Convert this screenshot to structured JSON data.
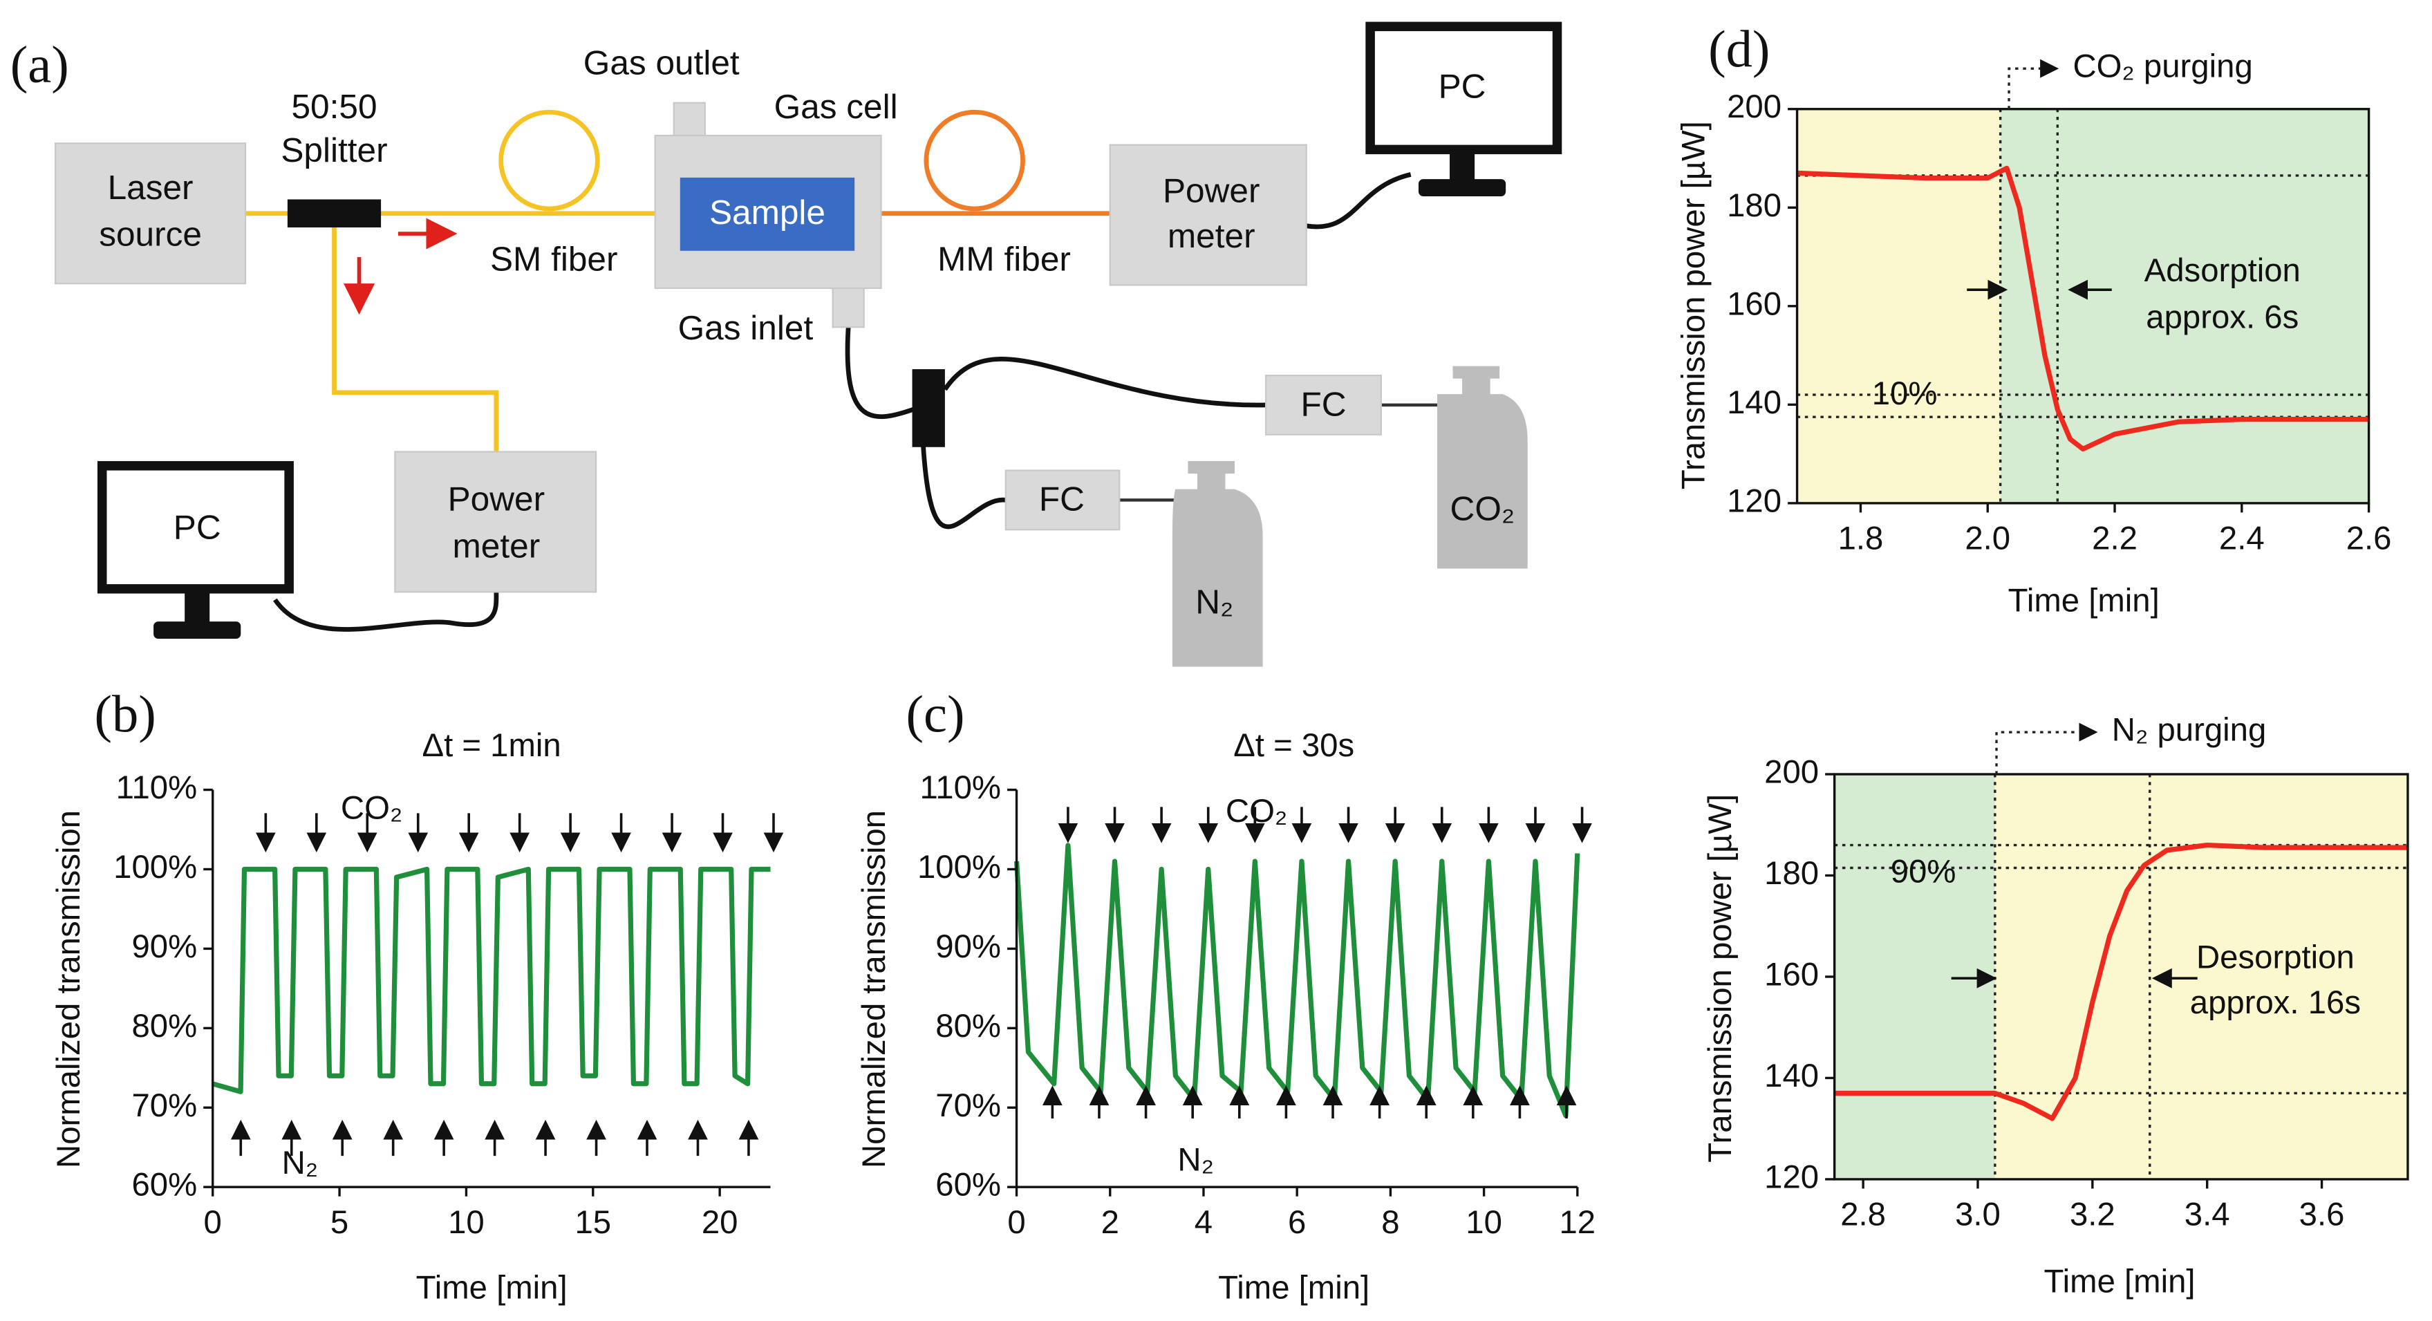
{
  "panel_labels": [
    "(a)",
    "(b)",
    "(c)",
    "(d)"
  ],
  "diagram": {
    "laser_source": [
      "Laser",
      "source"
    ],
    "splitter": [
      "50:50",
      "Splitter"
    ],
    "sm_fiber": "SM fiber",
    "gas_outlet": "Gas outlet",
    "gas_cell": "Gas cell",
    "sample": "Sample",
    "mm_fiber": "MM fiber",
    "power_meter_1": [
      "Power",
      "meter"
    ],
    "pc_1": "PC",
    "gas_inlet": "Gas inlet",
    "fc_1": "FC",
    "fc_2": "FC",
    "co2": "CO₂",
    "n2": "N₂",
    "power_meter_2": [
      "Power",
      "meter"
    ],
    "pc_2": "PC"
  },
  "chart_data": [
    {
      "type": "line",
      "title": "Δt = 1min",
      "xlabel": "Time [min]",
      "ylabel": "Normalized transmission",
      "x": [
        0,
        1.1,
        1.25,
        2.45,
        2.6,
        3.1,
        3.25,
        4.45,
        4.6,
        5.1,
        5.25,
        6.45,
        6.6,
        7.1,
        7.25,
        8.45,
        8.6,
        9.1,
        9.25,
        10.45,
        10.6,
        11.1,
        11.25,
        12.45,
        12.6,
        13.1,
        13.25,
        14.45,
        14.6,
        15.1,
        15.25,
        16.45,
        16.6,
        17.1,
        17.25,
        18.45,
        18.6,
        19.1,
        19.25,
        20.45,
        20.6,
        21.1,
        21.25,
        22
      ],
      "series": [
        {
          "color": "#1f8f3c",
          "values": [
            73,
            72,
            100,
            100,
            74,
            74,
            100,
            100,
            74,
            74,
            100,
            100,
            74,
            74,
            99,
            100,
            73,
            73,
            100,
            100,
            73,
            73,
            99,
            100,
            73,
            73,
            100,
            100,
            74,
            74,
            100,
            100,
            73,
            73,
            100,
            100,
            73,
            73,
            100,
            100,
            74,
            73,
            100,
            100
          ]
        }
      ],
      "xlim": [
        0,
        22
      ],
      "xticks": [
        0,
        5,
        10,
        15,
        20
      ],
      "ylim": [
        60,
        110
      ],
      "yticks": [
        {
          "value": 60,
          "label": "60%"
        },
        {
          "value": 70,
          "label": "70%"
        },
        {
          "value": 80,
          "label": "80%"
        },
        {
          "value": 90,
          "label": "90%"
        },
        {
          "value": 100,
          "label": "100%"
        },
        {
          "value": 110,
          "label": "110%"
        }
      ],
      "annotations": [
        "CO₂",
        "N₂"
      ]
    },
    {
      "type": "line",
      "title": "Δt = 30s",
      "xlabel": "Time [min]",
      "ylabel": "Normalized transmission",
      "x": [
        0,
        0.25,
        0.8,
        1.1,
        1.4,
        1.8,
        2.1,
        2.4,
        2.8,
        3.1,
        3.4,
        3.8,
        4.1,
        4.4,
        4.8,
        5.1,
        5.4,
        5.8,
        6.1,
        6.4,
        6.8,
        7.1,
        7.4,
        7.8,
        8.1,
        8.4,
        8.8,
        9.1,
        9.4,
        9.8,
        10.1,
        10.4,
        10.8,
        11.1,
        11.4,
        11.75,
        12
      ],
      "series": [
        {
          "color": "#1f8f3c",
          "values": [
            101,
            77,
            73,
            103,
            75,
            72,
            101,
            75,
            72,
            100,
            74,
            71,
            100,
            74,
            72,
            101,
            75,
            72,
            101,
            74,
            71,
            101,
            75,
            72,
            101,
            74,
            71,
            101,
            75,
            72,
            101,
            74,
            71,
            101,
            74,
            69,
            102
          ]
        }
      ],
      "xlim": [
        0,
        12
      ],
      "xticks": [
        0,
        2,
        4,
        6,
        8,
        10,
        12
      ],
      "ylim": [
        60,
        110
      ],
      "yticks": [
        {
          "value": 60,
          "label": "60%"
        },
        {
          "value": 70,
          "label": "70%"
        },
        {
          "value": 80,
          "label": "80%"
        },
        {
          "value": 90,
          "label": "90%"
        },
        {
          "value": 100,
          "label": "100%"
        },
        {
          "value": 110,
          "label": "110%"
        }
      ],
      "annotations": [
        "CO₂",
        "N₂"
      ]
    },
    {
      "type": "line",
      "xlabel": "Time [min]",
      "ylabel": "Transmission power [µW]",
      "x": [
        1.7,
        1.9,
        2.0,
        2.03,
        2.05,
        2.07,
        2.09,
        2.11,
        2.13,
        2.15,
        2.2,
        2.3,
        2.4,
        2.6
      ],
      "series": [
        {
          "color": "#ee2a1f",
          "values": [
            187,
            186,
            186,
            188,
            180,
            165,
            150,
            139,
            133,
            131,
            134,
            136.5,
            137,
            137
          ]
        }
      ],
      "xlim": [
        1.7,
        2.6
      ],
      "xticks": [
        1.8,
        {
          "value": 2,
          "label": "2.0"
        },
        2.2,
        2.4,
        2.6
      ],
      "ylim": [
        120,
        200
      ],
      "yticks": [
        120,
        140,
        160,
        180,
        200
      ],
      "regions": [
        {
          "x": [
            1.7,
            2.02
          ],
          "color": "#fbf8d0"
        },
        {
          "x": [
            2.02,
            2.6
          ],
          "color": "#d5ebd2"
        }
      ],
      "hlines": [
        186.5,
        142,
        137.5
      ],
      "vlines": [
        2.02,
        2.11
      ],
      "annotations": [
        "CO₂ purging",
        "Adsorption",
        "approx. 6s",
        "10%"
      ]
    },
    {
      "type": "line",
      "xlabel": "Time [min]",
      "ylabel": "Transmission power [µW]",
      "x": [
        2.75,
        2.9,
        3.03,
        3.08,
        3.13,
        3.17,
        3.2,
        3.23,
        3.26,
        3.29,
        3.33,
        3.4,
        3.5,
        3.75
      ],
      "series": [
        {
          "color": "#ee2a1f",
          "values": [
            137,
            137,
            137,
            135,
            132,
            140,
            155,
            168,
            177,
            182,
            185,
            186,
            185.5,
            185.5
          ]
        }
      ],
      "xlim": [
        2.75,
        3.75
      ],
      "xticks": [
        2.8,
        {
          "value": 3,
          "label": "3.0"
        },
        3.2,
        3.4,
        3.6
      ],
      "ylim": [
        120,
        200
      ],
      "yticks": [
        120,
        140,
        160,
        180,
        200
      ],
      "regions": [
        {
          "x": [
            2.75,
            3.03
          ],
          "color": "#d5ebd2"
        },
        {
          "x": [
            3.03,
            3.75
          ],
          "color": "#fbf8d0"
        }
      ],
      "hlines": [
        186,
        181.5,
        137
      ],
      "vlines": [
        3.03,
        3.3
      ],
      "annotations": [
        "N₂ purging",
        "90%",
        "Desorption",
        "approx. 16s"
      ]
    }
  ]
}
